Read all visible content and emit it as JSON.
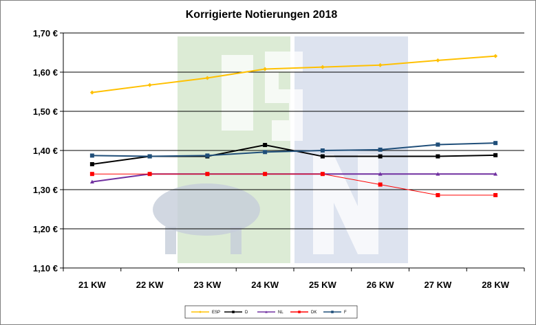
{
  "chart_data": {
    "type": "line",
    "title": "Korrigierte Notierungen 2018",
    "xlabel": "",
    "ylabel": "",
    "categories": [
      "21 KW",
      "22 KW",
      "23 KW",
      "24 KW",
      "25 KW",
      "26 KW",
      "27 KW",
      "28 KW"
    ],
    "ylim": [
      1.1,
      1.7
    ],
    "yticks": [
      1.1,
      1.2,
      1.3,
      1.4,
      1.5,
      1.6,
      1.7
    ],
    "ytick_labels": [
      "1,10 €",
      "1,20 €",
      "1,30 €",
      "1,40 €",
      "1,50 €",
      "1,60 €",
      "1,70 €"
    ],
    "grid": true,
    "legend_position": "bottom",
    "series": [
      {
        "name": "ESP",
        "color": "#FFC000",
        "marker": "diamond",
        "values": [
          1.548,
          1.567,
          1.585,
          1.608,
          1.613,
          1.618,
          1.63,
          1.641
        ]
      },
      {
        "name": "D",
        "color": "#000000",
        "marker": "square",
        "values": [
          1.365,
          1.385,
          1.385,
          1.414,
          1.385,
          1.385,
          1.385,
          1.388
        ]
      },
      {
        "name": "NL",
        "color": "#7030A0",
        "marker": "triangle",
        "values": [
          1.32,
          1.34,
          1.34,
          1.34,
          1.34,
          1.34,
          1.34,
          1.34
        ]
      },
      {
        "name": "DK",
        "color": "#FF0000",
        "marker": "square",
        "values": [
          1.34,
          1.34,
          1.34,
          1.34,
          1.34,
          1.313,
          1.286,
          1.286
        ]
      },
      {
        "name": "F",
        "color": "#1F4E79",
        "marker": "square",
        "values": [
          1.387,
          1.385,
          1.387,
          1.396,
          1.4,
          1.402,
          1.415,
          1.419
        ]
      }
    ]
  }
}
